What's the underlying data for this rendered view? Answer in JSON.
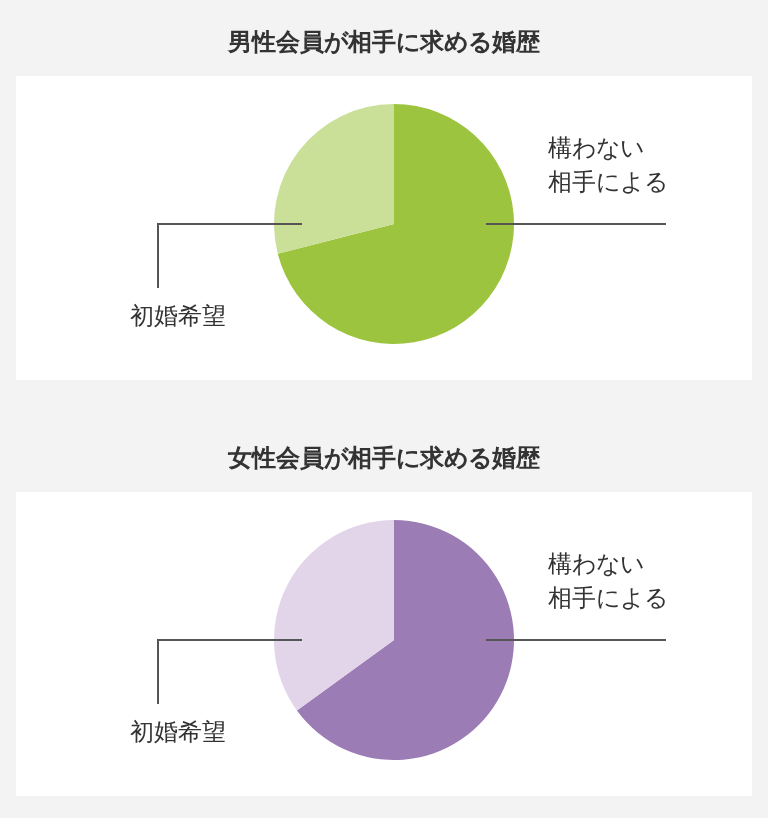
{
  "chart_data": [
    {
      "type": "pie",
      "title": "男性会員が相手に求める婚歴",
      "categories": [
        "構わない相手による",
        "初婚希望"
      ],
      "values": [
        71,
        29
      ],
      "colors": [
        "#9dc43f",
        "#cadf97"
      ]
    },
    {
      "type": "pie",
      "title": "女性会員が相手に求める婚歴",
      "categories": [
        "構わない相手による",
        "初婚希望"
      ],
      "values": [
        65,
        35
      ],
      "colors": [
        "#9c7cb4",
        "#e3d5e9"
      ]
    }
  ]
}
